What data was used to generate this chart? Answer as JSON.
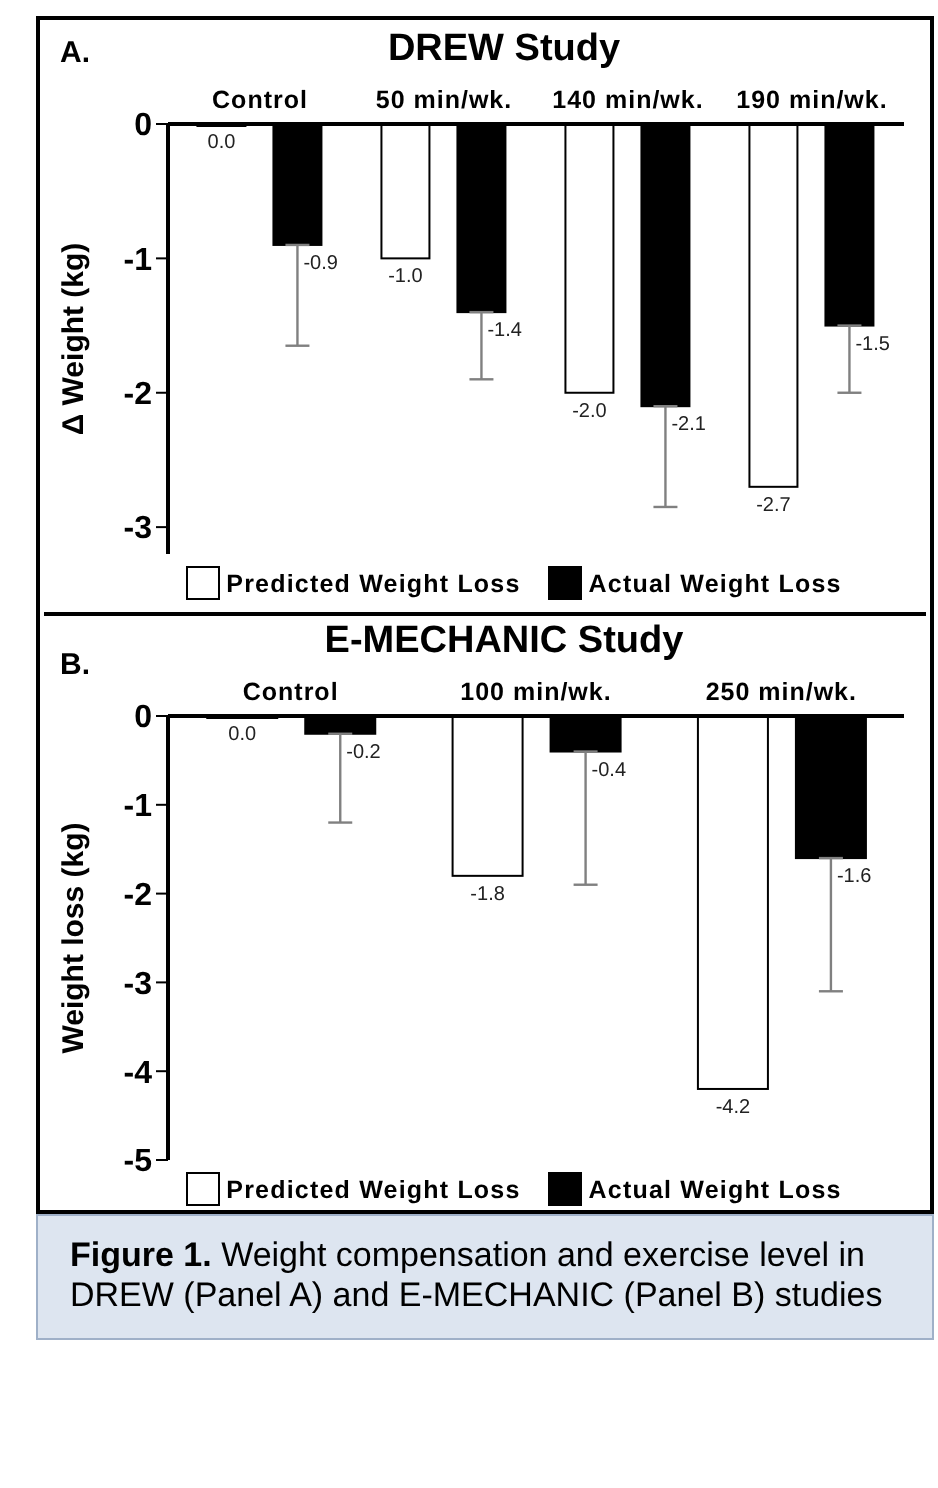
{
  "chart_data": [
    {
      "type": "bar",
      "title": "DREW Study",
      "ylabel": "Δ Weight (kg)",
      "annotations": [
        "A."
      ],
      "categories": [
        "Control",
        "50 min/wk.",
        "140 min/wk.",
        "190 min/wk."
      ],
      "series": [
        {
          "name": "Predicted Weight Loss",
          "color": "#ffffff",
          "values": [
            0.0,
            -1.0,
            -2.0,
            -2.7
          ],
          "value_labels": [
            "0.0",
            "-1.0",
            "-2.0",
            "-2.7"
          ]
        },
        {
          "name": "Actual Weight Loss",
          "color": "#000000",
          "values": [
            -0.9,
            -1.4,
            -2.1,
            -1.5
          ],
          "value_labels": [
            "-0.9",
            "-1.4",
            "-2.1",
            "-1.5"
          ],
          "errors": [
            [
              -1.65,
              -0.9
            ],
            [
              -1.9,
              -1.4
            ],
            [
              -2.85,
              -2.1
            ],
            [
              -2.0,
              -1.5
            ]
          ]
        }
      ],
      "ylim": [
        -3.2,
        0
      ],
      "yticks": [
        -3,
        -2,
        -1,
        0
      ],
      "grid": false,
      "legend": "bottom"
    },
    {
      "type": "bar",
      "title": "E-MECHANIC Study",
      "ylabel": "Weight loss (kg)",
      "annotations": [
        "B.",
        "Figure 1. Weight compensation and exercise level in DREW (Panel A) and E-MECHANIC (Panel B) studies"
      ],
      "categories": [
        "Control",
        "100 min/wk.",
        "250 min/wk."
      ],
      "series": [
        {
          "name": "Predicted Weight Loss",
          "color": "#ffffff",
          "values": [
            0.0,
            -1.8,
            -4.2
          ],
          "value_labels": [
            "0.0",
            "-1.8",
            "-4.2"
          ]
        },
        {
          "name": "Actual Weight Loss",
          "color": "#000000",
          "values": [
            -0.2,
            -0.4,
            -1.6
          ],
          "value_labels": [
            "-0.2",
            "-0.4",
            "-1.6"
          ],
          "errors": [
            [
              -1.2,
              -0.2
            ],
            [
              -1.9,
              -0.4
            ],
            [
              -3.1,
              -1.6
            ]
          ]
        }
      ],
      "ylim": [
        -5,
        0
      ],
      "yticks": [
        -5,
        -4,
        -3,
        -2,
        -1,
        0
      ],
      "grid": false,
      "legend": "bottom"
    }
  ]
}
